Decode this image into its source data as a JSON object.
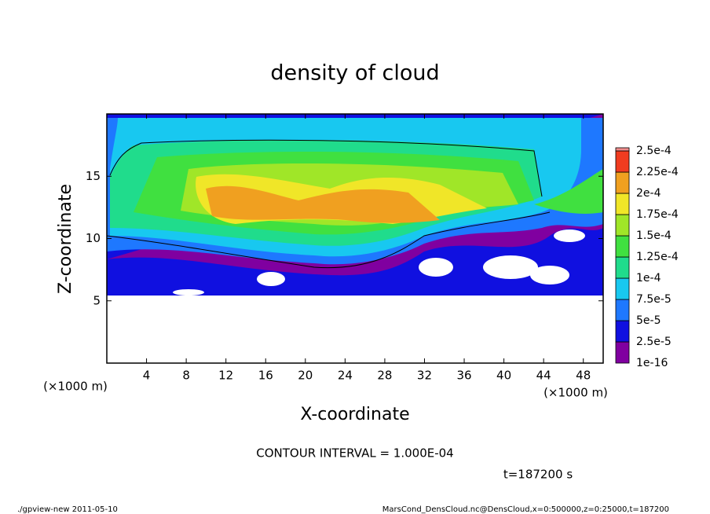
{
  "chart_data": {
    "type": "heatmap",
    "title": "density of cloud",
    "x_label": "X-coordinate",
    "y_label": "Z-coordinate",
    "x_unit": "(×1000 m)",
    "y_unit": "(×1000 m)",
    "xlim": [
      0,
      50
    ],
    "ylim": [
      0,
      20
    ],
    "xticks": [
      4,
      8,
      12,
      16,
      20,
      24,
      28,
      32,
      36,
      40,
      44,
      48
    ],
    "yticks": [
      5,
      10,
      15
    ],
    "levels": [
      {
        "value": 1e-16,
        "label": "1e-16"
      },
      {
        "value": 2.5e-05,
        "label": "2.5e-5"
      },
      {
        "value": 5e-05,
        "label": "5e-5"
      },
      {
        "value": 7.5e-05,
        "label": "7.5e-5"
      },
      {
        "value": 0.0001,
        "label": "1e-4"
      },
      {
        "value": 0.000125,
        "label": "1.25e-4"
      },
      {
        "value": 0.00015,
        "label": "1.5e-4"
      },
      {
        "value": 0.000175,
        "label": "1.75e-4"
      },
      {
        "value": 0.0002,
        "label": "2e-4"
      },
      {
        "value": 0.000225,
        "label": "2.25e-4"
      },
      {
        "value": 0.00025,
        "label": "2.5e-4"
      }
    ],
    "colors": [
      "#8000a0",
      "#1010e0",
      "#1e78ff",
      "#18c8f0",
      "#20dc8c",
      "#40e040",
      "#a0e628",
      "#f0e628",
      "#f0a020",
      "#f03c20",
      "#f08c8c"
    ],
    "contour_interval": "CONTOUR INTERVAL = 1.000E-04",
    "time_label": "t=187200 s",
    "footer_left": "./gpview-new  2011-05-10",
    "footer_right": "MarsCond_DensCloud.nc@DensCloud,x=0:500000,z=0:25000,t=187200"
  }
}
